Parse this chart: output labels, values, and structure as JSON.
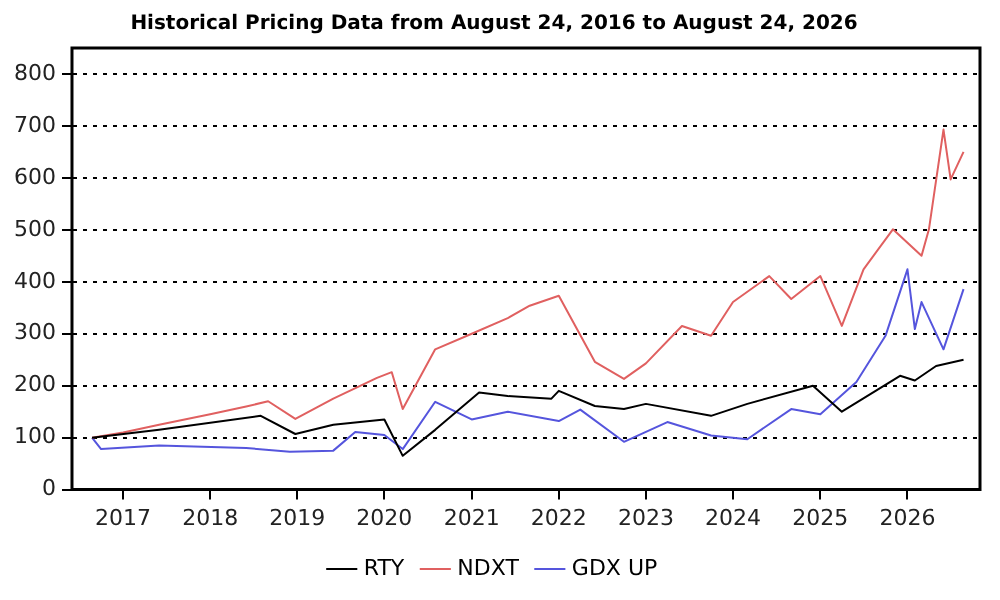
{
  "chart_data": {
    "type": "line",
    "title": "Historical Pricing Data from August 24, 2016 to August 24, 2026",
    "xlim": [
      "2016-06",
      "2026-11"
    ],
    "xticks": [
      "2017",
      "2018",
      "2019",
      "2020",
      "2021",
      "2022",
      "2023",
      "2024",
      "2025",
      "2026"
    ],
    "ylim": [
      0,
      850
    ],
    "yticks": [
      0,
      100,
      200,
      300,
      400,
      500,
      600,
      700,
      800
    ],
    "grid": "y",
    "legend": "bottom",
    "marker": "none",
    "line_style": "solid",
    "series": [
      {
        "name": "RTY",
        "color": "#000000",
        "x": [
          "2016-08-24",
          "2017-06",
          "2018-08",
          "2018-12-24",
          "2019-06",
          "2020-01",
          "2020-03-18",
          "2020-08",
          "2021-02",
          "2021-06",
          "2021-12",
          "2022-01",
          "2022-06",
          "2022-10",
          "2023-01",
          "2023-10",
          "2024-03",
          "2024-12",
          "2025-04",
          "2025-12",
          "2026-02",
          "2026-05",
          "2026-08-24"
        ],
        "values": [
          100,
          115,
          142,
          107,
          125,
          135,
          65,
          115,
          187,
          180,
          175,
          190,
          161,
          155,
          165,
          142,
          165,
          200,
          150,
          219,
          210,
          238,
          250
        ]
      },
      {
        "name": "NDXT",
        "color": "#e06060",
        "x": [
          "2016-08-24",
          "2017-01",
          "2017-06",
          "2018-01",
          "2018-06",
          "2018-09",
          "2018-12-24",
          "2019-06",
          "2019-12",
          "2020-02",
          "2020-03-18",
          "2020-08",
          "2021-01",
          "2021-06",
          "2021-09",
          "2022-01",
          "2022-06",
          "2022-10",
          "2023-01",
          "2023-06",
          "2023-10",
          "2024-01",
          "2024-06",
          "2024-09",
          "2025-01",
          "2025-04",
          "2025-07",
          "2025-11",
          "2026-03",
          "2026-04",
          "2026-06",
          "2026-07",
          "2026-08-24"
        ],
        "values": [
          100,
          110,
          125,
          145,
          160,
          170,
          136,
          175,
          215,
          226,
          155,
          270,
          300,
          330,
          354,
          373,
          246,
          213,
          243,
          315,
          296,
          361,
          411,
          367,
          411,
          315,
          424,
          501,
          450,
          501,
          693,
          597,
          650
        ]
      },
      {
        "name": "GDX UP",
        "color": "#5555dd",
        "x": [
          "2016-08-24",
          "2016-10",
          "2017-06",
          "2018-06",
          "2018-12",
          "2019-06",
          "2019-09",
          "2020-01",
          "2020-03-18",
          "2020-08",
          "2021-01",
          "2021-06",
          "2022-01",
          "2022-04",
          "2022-10",
          "2023-04",
          "2023-10",
          "2024-03",
          "2024-09",
          "2025-01",
          "2025-06",
          "2025-10",
          "2026-01",
          "2026-02",
          "2026-03",
          "2026-06",
          "2026-08-24"
        ],
        "values": [
          100,
          78,
          85,
          80,
          73,
          75,
          111,
          105,
          78,
          169,
          135,
          150,
          132,
          154,
          92,
          130,
          104,
          97,
          155,
          145,
          207,
          296,
          424,
          309,
          361,
          270,
          386
        ]
      }
    ]
  }
}
